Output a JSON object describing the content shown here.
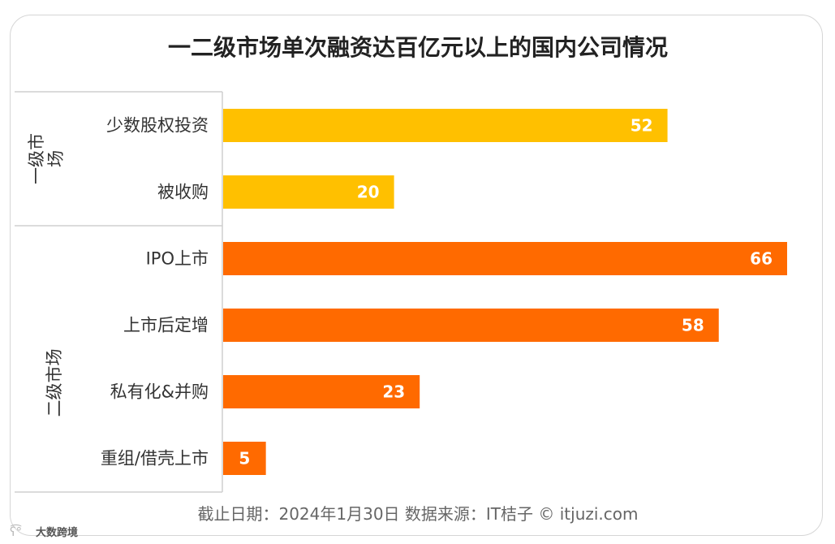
{
  "chart_data": {
    "type": "bar",
    "orientation": "horizontal",
    "title": "一二级市场单次融资达百亿元以上的国内公司情况",
    "groups": [
      {
        "name": "一级市场",
        "color": "#ffc000",
        "categories": [
          "少数股权投资",
          "被收购"
        ],
        "values": [
          52,
          20
        ]
      },
      {
        "name": "二级市场",
        "color": "#ff6a00",
        "categories": [
          "IPO上市",
          "上市后定增",
          "私有化&并购",
          "重组/借壳上市"
        ],
        "values": [
          66,
          58,
          23,
          5
        ]
      }
    ],
    "xlim": [
      0,
      66
    ],
    "grid": false,
    "legend": "none"
  },
  "footer": {
    "text": "截止日期：2024年1月30日    数据来源：IT桔子 © itjuzi.com"
  },
  "watermark": {
    "text": "大数跨境"
  }
}
